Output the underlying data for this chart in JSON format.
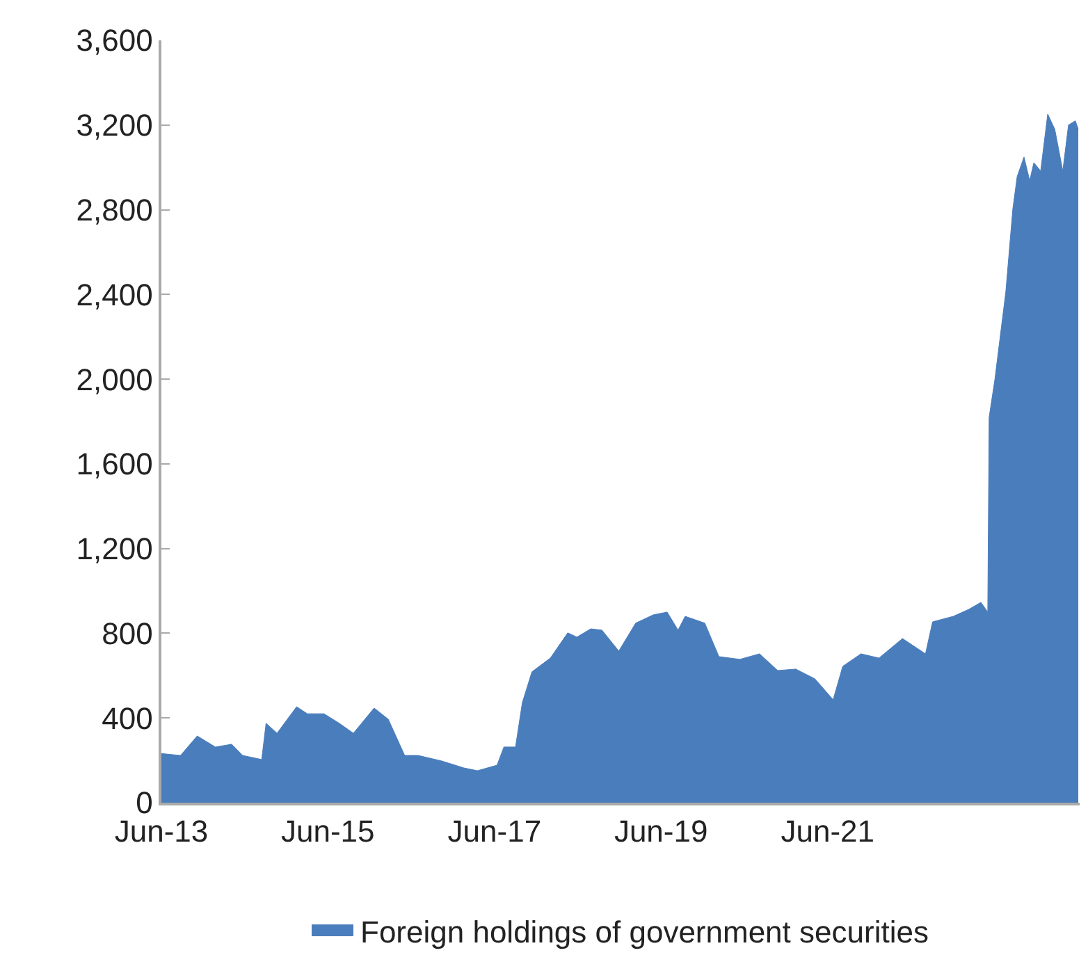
{
  "chart_data": {
    "type": "area",
    "x": [
      "2013-06-01",
      "2013-08-24",
      "2013-11-05",
      "2014-01-24",
      "2014-04-05",
      "2014-05-23",
      "2014-08-15",
      "2014-09-03",
      "2014-10-21",
      "2015-01-15",
      "2015-03-03",
      "2015-05-15",
      "2015-07-21",
      "2015-09-21",
      "2015-12-21",
      "2016-02-21",
      "2016-05-03",
      "2016-07-01",
      "2016-10-12",
      "2017-01-18",
      "2017-03-18",
      "2017-06-12",
      "2017-07-12",
      "2017-09-01",
      "2017-10-01",
      "2017-11-12",
      "2018-02-01",
      "2018-04-18",
      "2018-05-28",
      "2018-07-28",
      "2018-09-15",
      "2018-11-28",
      "2019-02-10",
      "2019-04-28",
      "2019-06-28",
      "2019-08-15",
      "2019-09-15",
      "2019-12-10",
      "2020-02-10",
      "2020-05-12",
      "2020-08-06",
      "2020-10-25",
      "2021-01-12",
      "2021-04-06",
      "2021-06-25",
      "2021-08-06",
      "2021-10-25",
      "2022-01-12",
      "2022-04-25",
      "2022-08-04",
      "2022-09-04",
      "2022-12-04",
      "2023-02-10",
      "2023-04-04",
      "2023-05-04",
      "2023-05-10",
      "2023-06-04",
      "2023-07-22",
      "2023-08-22",
      "2023-09-10",
      "2023-10-10",
      "2023-11-04",
      "2023-11-22",
      "2023-12-22",
      "2024-01-22",
      "2024-02-22",
      "2024-03-28",
      "2024-04-22",
      "2024-05-22",
      "2024-06-04"
    ],
    "series": [
      {
        "name": "Foreign holdings of government securities",
        "color": "#4a7dbc",
        "values": [
          232,
          223,
          315,
          263,
          276,
          223,
          204,
          375,
          328,
          453,
          420,
          420,
          375,
          328,
          447,
          394,
          223,
          223,
          197,
          164,
          151,
          177,
          263,
          263,
          473,
          618,
          683,
          802,
          782,
          821,
          815,
          716,
          848,
          887,
          900,
          815,
          880,
          848,
          690,
          677,
          703,
          624,
          631,
          585,
          486,
          644,
          703,
          683,
          775,
          703,
          854,
          880,
          913,
          946,
          900,
          1820,
          1997,
          2411,
          2805,
          2957,
          3049,
          2937,
          3022,
          2983,
          3252,
          3180,
          2983,
          3200,
          3220,
          3180
        ]
      }
    ],
    "xlim": [
      "2013-06-01",
      "2024-06-10"
    ],
    "xticks": [
      {
        "value": "2013-06-01",
        "label": "Jun-13"
      },
      {
        "value": "2015-06-01",
        "label": "Jun-15"
      },
      {
        "value": "2017-06-01",
        "label": "Jun-17"
      },
      {
        "value": "2019-06-01",
        "label": "Jun-19"
      },
      {
        "value": "2021-06-01",
        "label": "Jun-21"
      }
    ],
    "ylim": [
      0,
      3600
    ],
    "yticks": [
      {
        "value": 0,
        "label": "0"
      },
      {
        "value": 400,
        "label": "400"
      },
      {
        "value": 800,
        "label": "800"
      },
      {
        "value": 1200,
        "label": "1,200"
      },
      {
        "value": 1600,
        "label": "1,600"
      },
      {
        "value": 2000,
        "label": "2,000"
      },
      {
        "value": 2400,
        "label": "2,400"
      },
      {
        "value": 2800,
        "label": "2,800"
      },
      {
        "value": 3200,
        "label": "3,200"
      },
      {
        "value": 3600,
        "label": "3,600"
      }
    ],
    "legend": "bottom"
  }
}
